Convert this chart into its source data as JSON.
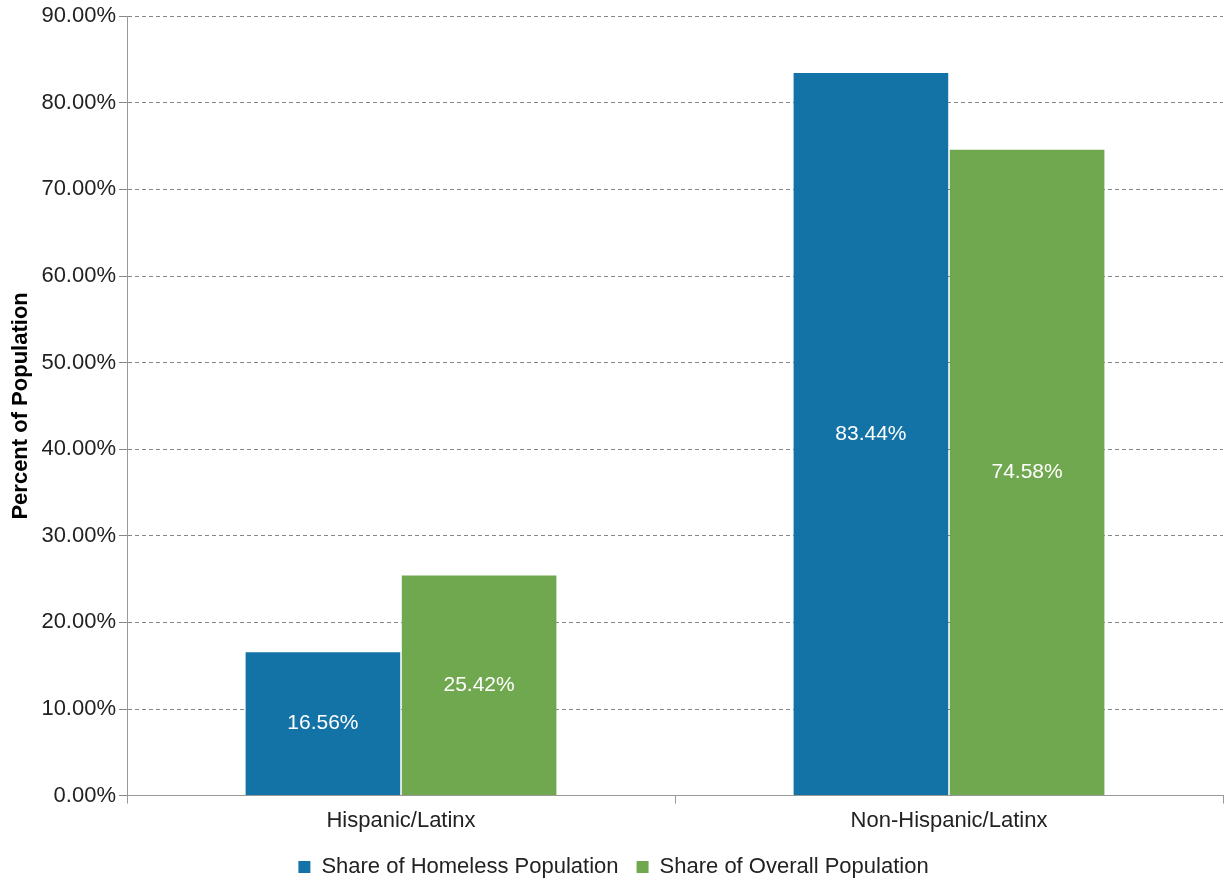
{
  "chart_data": {
    "type": "bar",
    "ylabel": "Percent of Population",
    "categories": [
      "Hispanic/Latinx",
      "Non-Hispanic/Latinx"
    ],
    "series": [
      {
        "name": "Share of Homeless Population",
        "color": "#1473a6",
        "values": [
          16.56,
          83.44
        ],
        "value_labels": [
          "16.56%",
          "83.44%"
        ]
      },
      {
        "name": "Share of Overall Population",
        "color": "#70a84f",
        "values": [
          25.42,
          74.58
        ],
        "value_labels": [
          "25.42%",
          "74.58%"
        ]
      }
    ],
    "ylim": [
      0,
      90
    ],
    "yticks": [
      {
        "value": 0,
        "label": "0.00%"
      },
      {
        "value": 10,
        "label": "10.00%"
      },
      {
        "value": 20,
        "label": "20.00%"
      },
      {
        "value": 30,
        "label": "30.00%"
      },
      {
        "value": 40,
        "label": "40.00%"
      },
      {
        "value": 50,
        "label": "50.00%"
      },
      {
        "value": 60,
        "label": "60.00%"
      },
      {
        "value": 70,
        "label": "70.00%"
      },
      {
        "value": 80,
        "label": "80.00%"
      },
      {
        "value": 90,
        "label": "90.00%"
      }
    ],
    "grid": "y",
    "legend": "bottom"
  }
}
